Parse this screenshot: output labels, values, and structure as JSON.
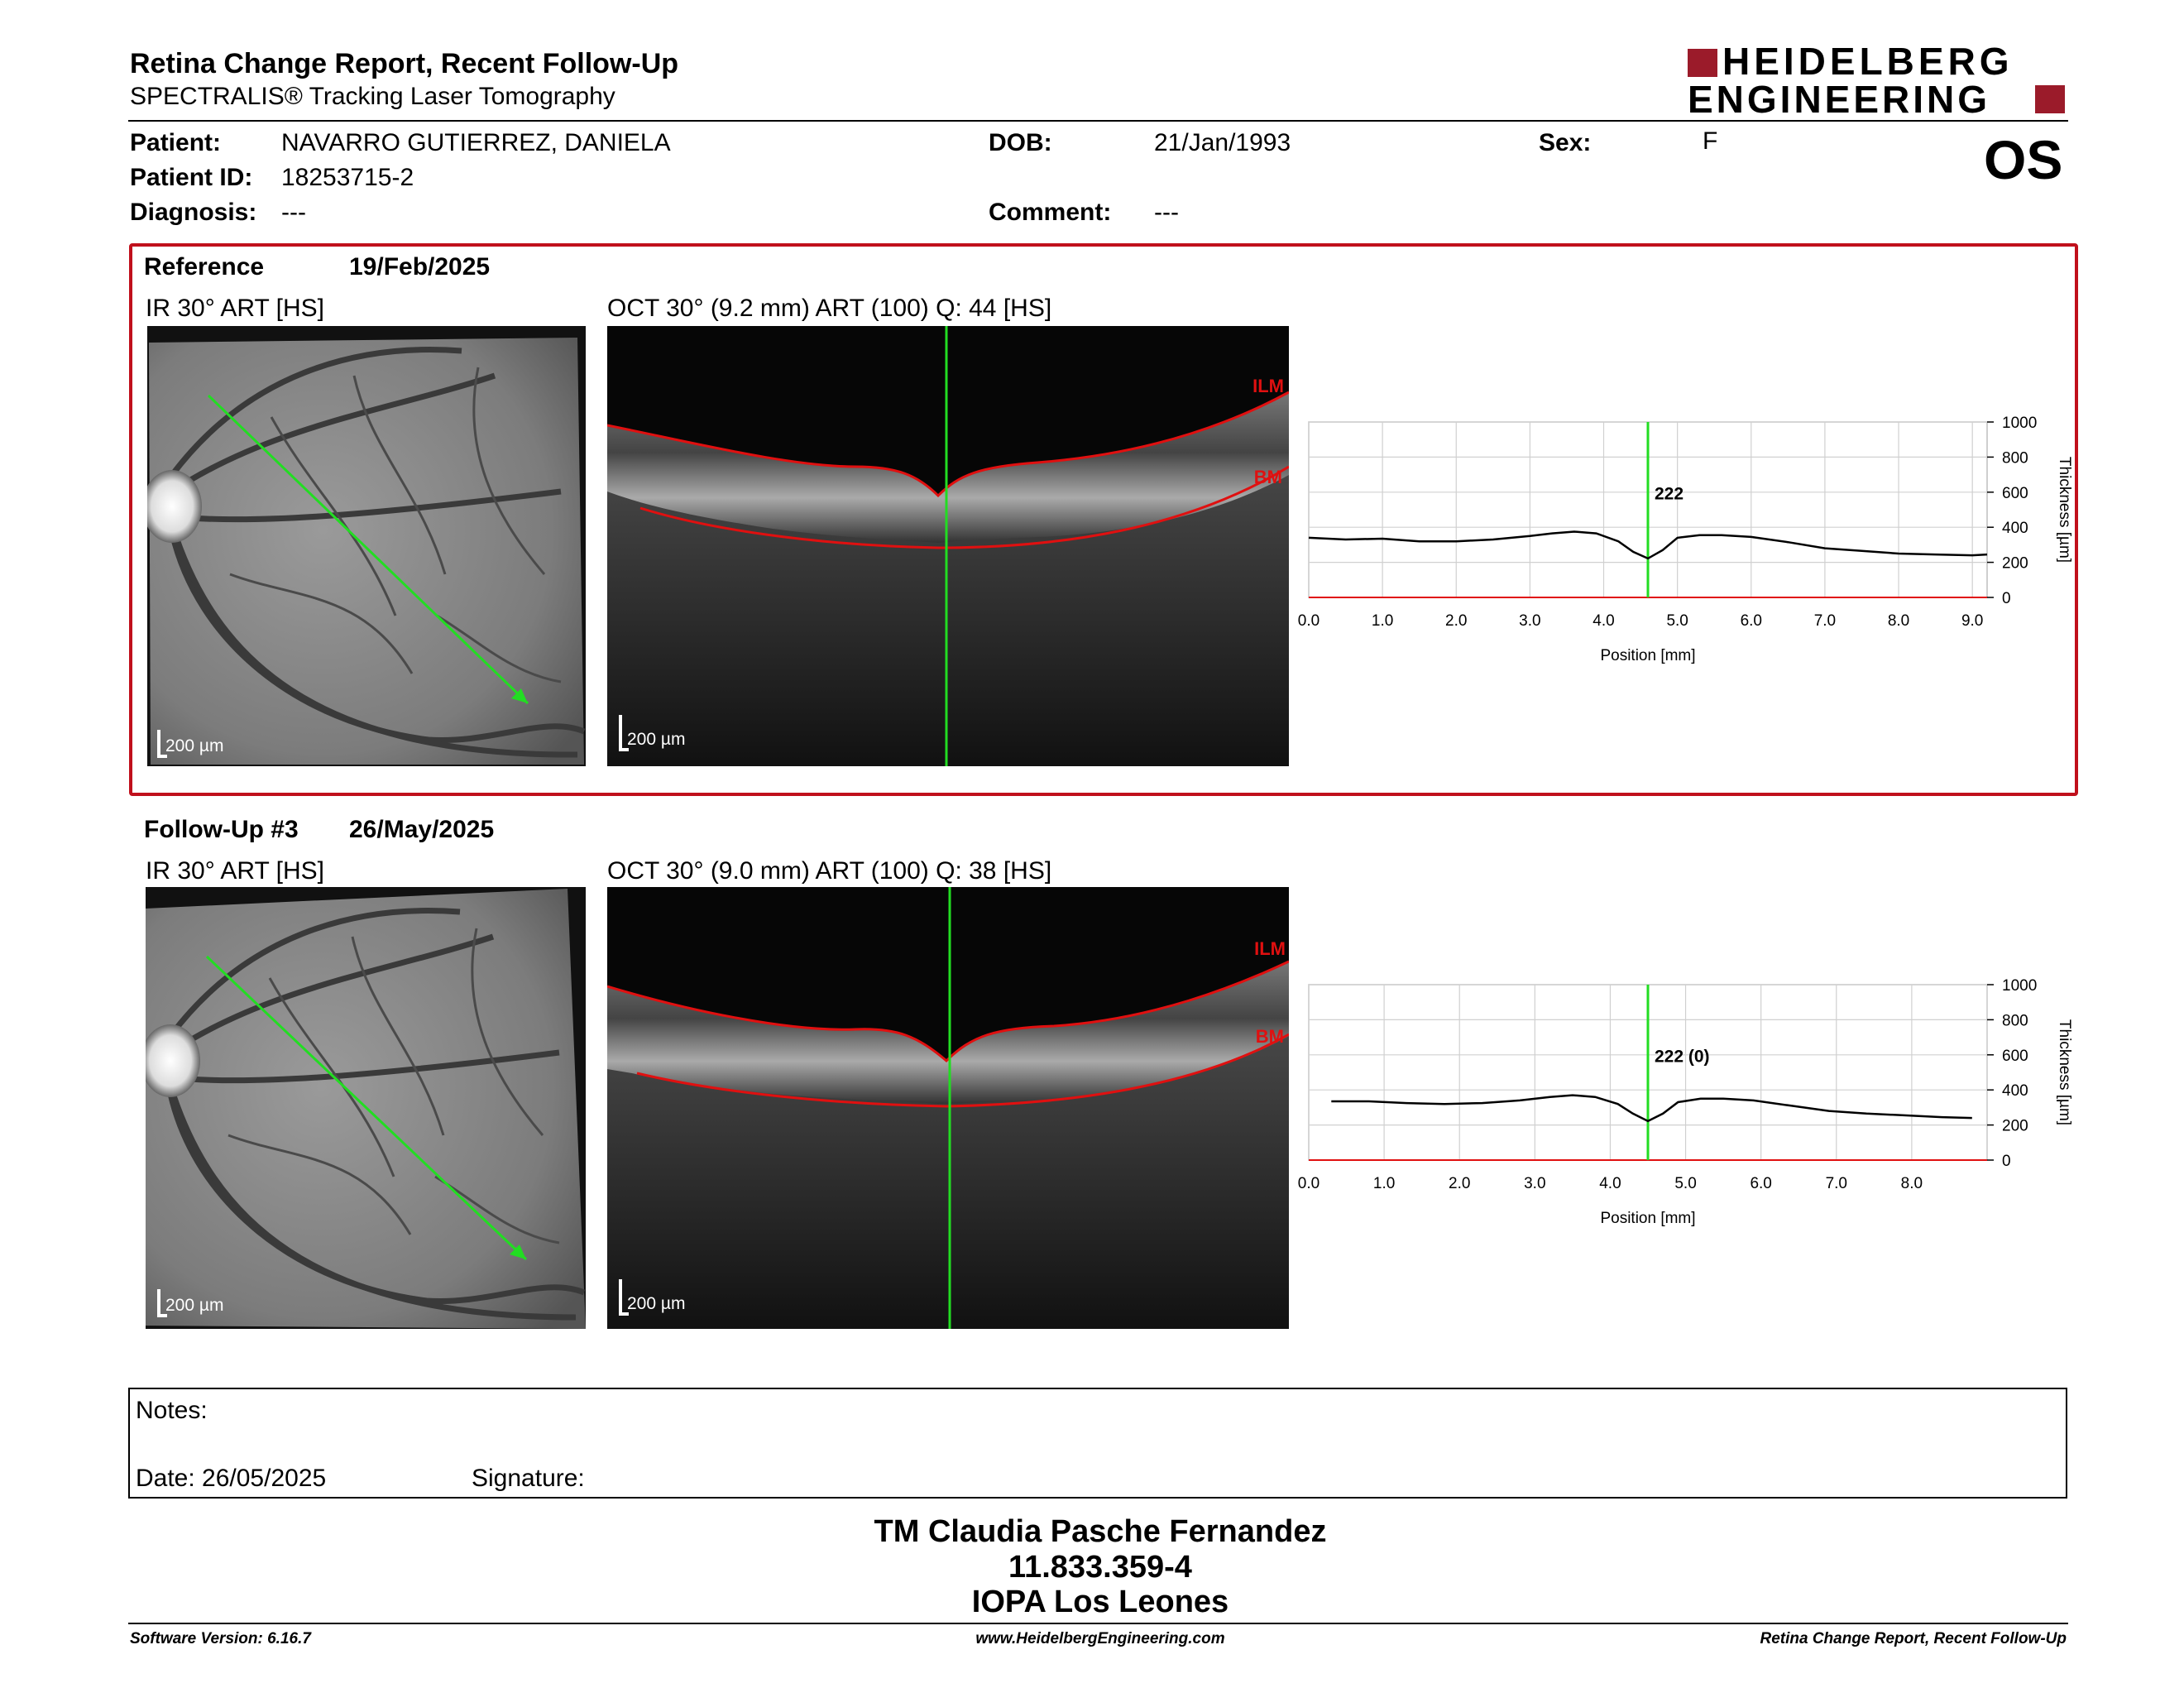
{
  "header": {
    "title": "Retina Change Report, Recent Follow-Up",
    "subtitle": "SPECTRALIS® Tracking Laser Tomography",
    "logo_line1": "HEIDELBERG",
    "logo_line2": "ENGINEERING",
    "eye": "OS"
  },
  "patient": {
    "patient_label": "Patient:",
    "patient_value": "NAVARRO GUTIERREZ, DANIELA",
    "id_label": "Patient ID:",
    "id_value": "18253715-2",
    "diagnosis_label": "Diagnosis:",
    "diagnosis_value": "---",
    "dob_label": "DOB:",
    "dob_value": "21/Jan/1993",
    "comment_label": "Comment:",
    "comment_value": "---",
    "sex_label": "Sex:",
    "sex_value": "F"
  },
  "reference": {
    "label": "Reference",
    "date": "19/Feb/2025",
    "ir_title": "IR 30° ART [HS]",
    "oct_title": "OCT 30° (9.2 mm) ART (100) Q: 44 [HS]",
    "scale": "200 µm",
    "ilm": "ILM",
    "bm": "BM",
    "value_label": "222"
  },
  "followup": {
    "label": "Follow-Up #3",
    "date": "26/May/2025",
    "ir_title": "IR 30° ART [HS]",
    "oct_title": "OCT 30° (9.0 mm) ART (100) Q: 38 [HS]",
    "scale": "200 µm",
    "ilm": "ILM",
    "bm": "BM",
    "value_label": "222 (0)"
  },
  "chart_data": [
    {
      "type": "line",
      "title": "",
      "xlabel": "Position [mm]",
      "ylabel": "Thickness [µm]",
      "xlim": [
        0,
        9.2
      ],
      "ylim": [
        0,
        1000
      ],
      "xticks": [
        "0.0",
        "1.0",
        "2.0",
        "3.0",
        "4.0",
        "5.0",
        "6.0",
        "7.0",
        "8.0",
        "9.0"
      ],
      "yticks": [
        "0",
        "200",
        "400",
        "600",
        "800",
        "1000"
      ],
      "marker_x": 4.6,
      "marker_label": "222",
      "x": [
        0.0,
        0.5,
        1.0,
        1.5,
        2.0,
        2.5,
        3.0,
        3.3,
        3.6,
        3.9,
        4.2,
        4.4,
        4.6,
        4.8,
        5.0,
        5.3,
        5.6,
        6.0,
        6.5,
        7.0,
        7.5,
        8.0,
        8.5,
        9.0,
        9.2
      ],
      "y": [
        340,
        330,
        335,
        320,
        320,
        330,
        350,
        365,
        375,
        365,
        320,
        260,
        222,
        270,
        340,
        355,
        355,
        345,
        315,
        280,
        265,
        250,
        245,
        240,
        245
      ]
    },
    {
      "type": "line",
      "title": "",
      "xlabel": "Position [mm]",
      "ylabel": "Thickness [µm]",
      "xlim": [
        0,
        9.0
      ],
      "ylim": [
        0,
        1000
      ],
      "xticks": [
        "0.0",
        "1.0",
        "2.0",
        "3.0",
        "4.0",
        "5.0",
        "6.0",
        "7.0",
        "8.0"
      ],
      "yticks": [
        "0",
        "200",
        "400",
        "600",
        "800",
        "1000"
      ],
      "marker_x": 4.5,
      "marker_label": "222 (0)",
      "x": [
        0.3,
        0.8,
        1.3,
        1.8,
        2.3,
        2.8,
        3.2,
        3.5,
        3.8,
        4.1,
        4.3,
        4.5,
        4.7,
        4.9,
        5.2,
        5.5,
        5.9,
        6.4,
        6.9,
        7.4,
        7.9,
        8.4,
        8.8
      ],
      "y": [
        335,
        335,
        325,
        320,
        325,
        340,
        360,
        370,
        360,
        320,
        265,
        222,
        265,
        330,
        350,
        350,
        340,
        310,
        280,
        265,
        255,
        245,
        240
      ]
    }
  ],
  "notes": {
    "notes_label": "Notes:",
    "date_label": "Date: 26/05/2025",
    "signature_label": "Signature:"
  },
  "stamp": {
    "name": "TM Claudia Pasche Fernandez",
    "id": "11.833.359-4",
    "clinic": "IOPA Los Leones"
  },
  "footer": {
    "version": "Software Version: 6.16.7",
    "website": "www.HeidelbergEngineering.com",
    "report": "Retina Change Report, Recent Follow-Up"
  },
  "colors": {
    "brand_red": "#9b1b2a",
    "box_red": "#c0101c",
    "scan_green": "#22dd22",
    "layer_red": "#e01010"
  }
}
